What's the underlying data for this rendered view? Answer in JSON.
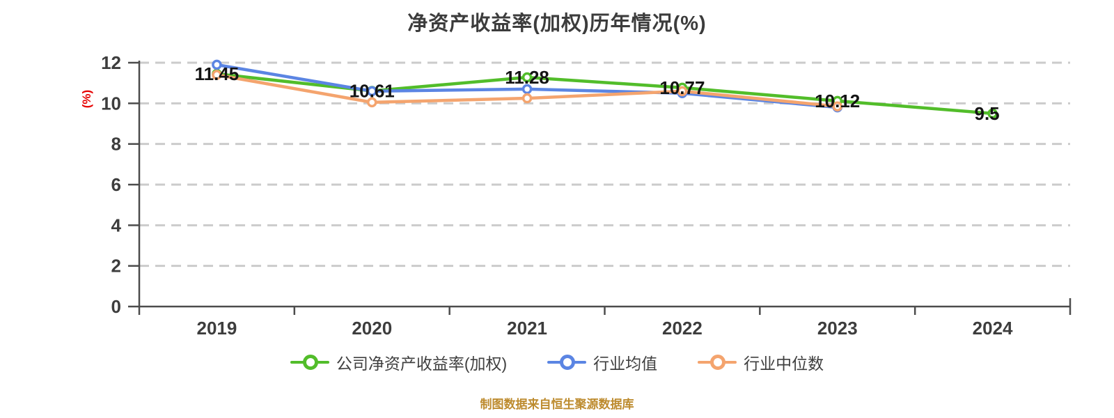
{
  "header": {
    "title": "净资产收益率(加权)历年情况(%)"
  },
  "footer": {
    "source": "制图数据来自恒生聚源数据库"
  },
  "legend": {
    "items": [
      {
        "label": "公司净资产收益率(加权)",
        "color": "#52bd2a"
      },
      {
        "label": "行业均值",
        "color": "#5b85e3"
      },
      {
        "label": "行业中位数",
        "color": "#f4a46e"
      }
    ]
  },
  "colors": {
    "company": "#52bd2a",
    "industry_avg": "#5b85e3",
    "industry_median": "#f4a46e",
    "grid": "#cbcbcb",
    "axis": "#4c4c4c",
    "axis_text": "#3d3d3d",
    "point_label": "#141414",
    "y_axis_title": "#e60000",
    "title_text": "#3c3c3c",
    "footer_text": "#bd8b2e",
    "marker_fill": "#ffffff",
    "background": "#ffffff"
  },
  "chart_data": {
    "type": "line",
    "title": "净资产收益率(加权)历年情况(%)",
    "categories": [
      "2019",
      "2020",
      "2021",
      "2022",
      "2023",
      "2024"
    ],
    "series": [
      {
        "name": "公司净资产收益率(加权)",
        "color": "#52bd2a",
        "values": [
          11.45,
          10.61,
          11.28,
          10.77,
          10.12,
          9.5
        ],
        "point_labels": [
          "11.45",
          "10.61",
          "11.28",
          "10.77",
          "10.12",
          "9.5"
        ]
      },
      {
        "name": "行业均值",
        "color": "#5b85e3",
        "values": [
          11.9,
          10.6,
          10.7,
          10.5,
          9.8
        ],
        "point_labels": []
      },
      {
        "name": "行业中位数",
        "color": "#f4a46e",
        "values": [
          11.4,
          10.05,
          10.25,
          10.6,
          9.85
        ],
        "point_labels": []
      }
    ],
    "xlabel": "",
    "ylabel": "(%)",
    "ylim": [
      0,
      12
    ],
    "yticks": [
      0,
      2,
      4,
      6,
      8,
      10,
      12
    ],
    "grid": true,
    "grid_style": "dashed",
    "legend_position": "bottom"
  }
}
